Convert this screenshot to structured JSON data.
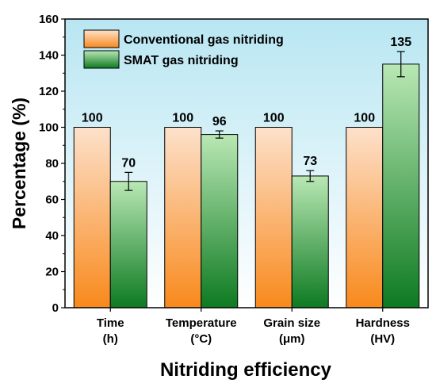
{
  "chart_data": {
    "type": "bar",
    "xlabel": "Nitriding efficiency",
    "ylabel": "Percentage (%)",
    "ylim": [
      0,
      160
    ],
    "yticks": [
      0,
      20,
      40,
      60,
      80,
      100,
      120,
      140,
      160
    ],
    "categories": [
      [
        "Time",
        "(h)"
      ],
      [
        "Temperature",
        "(°C)"
      ],
      [
        "Grain size",
        "(μm)"
      ],
      [
        "Hardness",
        "(HV)"
      ]
    ],
    "series": [
      {
        "name": "Conventional gas nitriding",
        "values": [
          100,
          100,
          100,
          100
        ],
        "errors": [
          0,
          0,
          0,
          0
        ],
        "labels": [
          "100",
          "100",
          "100",
          "100"
        ]
      },
      {
        "name": "SMAT gas nitriding",
        "values": [
          70,
          96,
          73,
          135
        ],
        "errors": [
          5,
          2,
          3,
          7
        ],
        "labels": [
          "70",
          "96",
          "73",
          "135"
        ]
      }
    ],
    "grid": false,
    "legend_position": "top-left"
  },
  "colors": {
    "plot_bg_top": "#b8e6f2",
    "plot_bg_bottom": "#ffffff",
    "conventional_top": "#fde1cb",
    "conventional_bottom": "#f8891c",
    "smat_top": "#b9e8b4",
    "smat_bottom": "#0d7a21"
  }
}
